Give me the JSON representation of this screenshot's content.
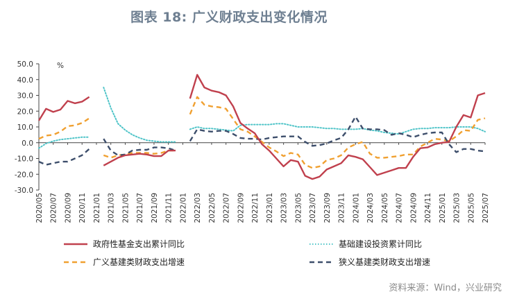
{
  "header": {
    "title": "图表 18: 广义财政支出变化情况",
    "source": "资料来源：Wind，兴业研究"
  },
  "chart_data": {
    "type": "line",
    "unit_label": "%",
    "ylim": [
      -30,
      50
    ],
    "yticks": [
      "50.0",
      "40.0",
      "30.0",
      "20.0",
      "10.0",
      "0.0",
      "-10.0",
      "-20.0",
      "-30.0"
    ],
    "x_tick_labels": [
      "2020/05",
      "2020/07",
      "2020/09",
      "2020/11",
      "2021/01",
      "2021/03",
      "2021/05",
      "2021/07",
      "2021/09",
      "2021/11",
      "2022/01",
      "2022/03",
      "2022/05",
      "2022/07",
      "2022/09",
      "2022/11",
      "2023/01",
      "2023/03",
      "2023/05",
      "2023/07",
      "2023/09",
      "2023/11",
      "2024/01",
      "2024/03",
      "2024/05",
      "2024/07",
      "2024/09",
      "2024/11",
      "2025/01",
      "2025/03",
      "2025/05",
      "2025/07"
    ],
    "x": [
      "2020/05",
      "2020/06",
      "2020/07",
      "2020/08",
      "2020/09",
      "2020/10",
      "2020/11",
      "2020/12",
      "2021/01",
      "2021/02",
      "2021/03",
      "2021/04",
      "2021/05",
      "2021/06",
      "2021/07",
      "2021/08",
      "2021/09",
      "2021/10",
      "2021/11",
      "2021/12",
      "2022/01",
      "2022/02",
      "2022/03",
      "2022/04",
      "2022/05",
      "2022/06",
      "2022/07",
      "2022/08",
      "2022/09",
      "2022/10",
      "2022/11",
      "2022/12",
      "2023/01",
      "2023/02",
      "2023/03",
      "2023/04",
      "2023/05",
      "2023/06",
      "2023/07",
      "2023/08",
      "2023/09",
      "2023/10",
      "2023/11",
      "2023/12",
      "2024/01",
      "2024/02",
      "2024/03",
      "2024/04",
      "2024/05",
      "2024/06",
      "2024/07",
      "2024/08",
      "2024/09",
      "2024/10",
      "2024/11",
      "2024/12",
      "2025/01",
      "2025/02",
      "2025/03",
      "2025/04",
      "2025/05",
      "2025/06",
      "2025/07"
    ],
    "series": [
      {
        "name": "政府性基金支出累计同比",
        "color": "#c0404d",
        "style": "solid",
        "values": [
          14,
          21.5,
          19.5,
          21,
          26.5,
          25,
          26,
          29,
          null,
          -14.5,
          -12,
          -9.5,
          -8,
          -7.5,
          -7,
          -7.5,
          -8.5,
          -8.5,
          -5,
          -5,
          null,
          28,
          43,
          35,
          33,
          32,
          30,
          23,
          12.5,
          9,
          6,
          -1,
          -5,
          -10,
          -15,
          -11,
          -12,
          -21,
          -23,
          -21.5,
          -17,
          -15,
          -13,
          -8,
          -9,
          -10.5,
          -15.5,
          -20.5,
          -19,
          -17.5,
          -16,
          -16,
          -9,
          -3.5,
          -3,
          -1,
          0,
          0.5,
          10,
          17.5,
          16,
          30,
          31.5
        ]
      },
      {
        "name": "基础建设投资累计同比",
        "color": "#4fc4c8",
        "style": "dotted",
        "values": [
          -3.5,
          -0.5,
          1,
          2,
          2.5,
          3,
          3.5,
          3.5,
          null,
          35,
          22,
          12,
          8,
          5,
          3,
          1.5,
          1,
          0.5,
          0.5,
          0.5,
          null,
          8.5,
          10,
          9,
          9,
          8.5,
          8,
          7.5,
          11,
          11.5,
          11.5,
          11.5,
          11.5,
          12,
          12,
          11,
          10,
          10,
          10,
          9.5,
          9,
          9,
          8.5,
          8.5,
          8.5,
          9,
          8,
          7.5,
          6.5,
          6,
          5.5,
          7,
          8.5,
          9,
          9,
          9.5,
          9.5,
          9.5,
          10,
          10,
          10,
          9,
          7
        ]
      },
      {
        "name": "广义基建类财政支出增速",
        "color": "#f0a030",
        "style": "dashed",
        "values": [
          2.5,
          4.5,
          5,
          7,
          10.5,
          11,
          12.5,
          15.5,
          null,
          -8,
          -9.5,
          -8,
          -7.5,
          -6.5,
          -6.5,
          -6.5,
          -7,
          -6.5,
          -5,
          -5,
          null,
          18,
          29,
          24,
          23,
          22.5,
          21.5,
          15,
          8.5,
          7,
          4,
          0.5,
          -3,
          -5.5,
          -8.5,
          -6.5,
          -7.5,
          -14,
          -16,
          -15,
          -11,
          -10,
          -8,
          -3,
          -1,
          0.5,
          -7,
          -9.5,
          -9.5,
          -9,
          -8.5,
          -7.5,
          -7.5,
          -2.5,
          0,
          2.5,
          2,
          1,
          4,
          8,
          7.5,
          14.5,
          15.5
        ]
      },
      {
        "name": "狭义基建类财政支出增速",
        "color": "#3d4e6b",
        "style": "dashed",
        "values": [
          -12,
          -14,
          -13,
          -12,
          -12,
          -10,
          -8,
          -4,
          null,
          2.5,
          -5,
          -8,
          -7.5,
          -5,
          -4.5,
          -4.5,
          -3,
          -3,
          -3.5,
          -5,
          null,
          1,
          8.5,
          7.5,
          7,
          7.5,
          7.5,
          5.5,
          3,
          2.5,
          2.5,
          2,
          3,
          3.5,
          4,
          4,
          4,
          0.5,
          -2,
          -1.5,
          -0.5,
          1.5,
          3,
          8.5,
          16.5,
          9,
          8.5,
          8.5,
          8,
          5,
          6,
          5,
          3.5,
          5,
          6,
          6.5,
          6.5,
          -1,
          -6,
          -4,
          -4,
          -5,
          -5.5
        ]
      }
    ]
  }
}
